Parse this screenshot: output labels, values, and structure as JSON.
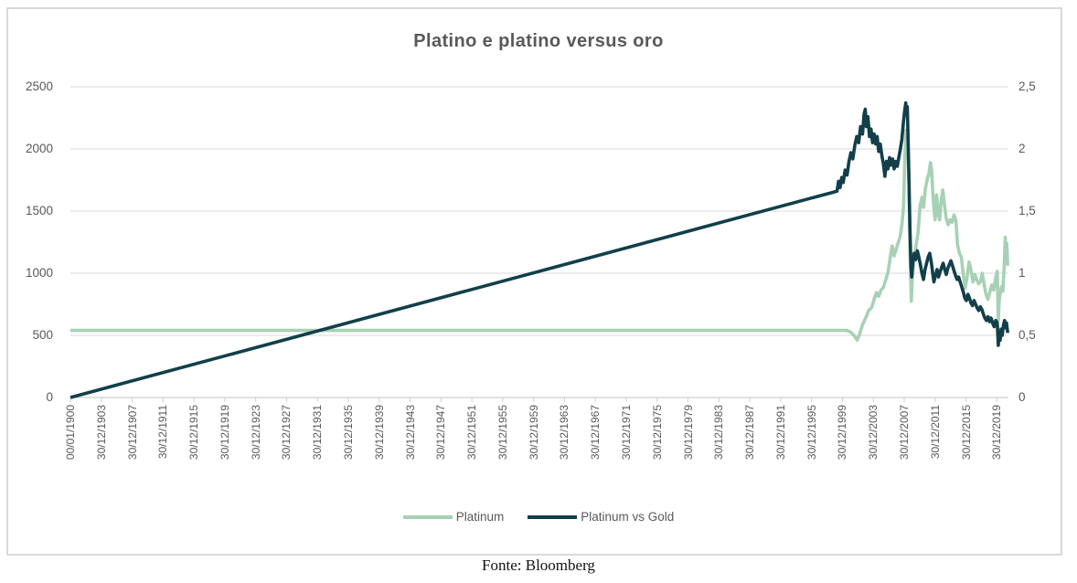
{
  "caption": "Fonte: Bloomberg",
  "colors": {
    "platinum": "#a7d1b4",
    "platinum_vs_gold": "#123f4a",
    "gridline": "#dadada",
    "axis_line": "#cfcfcf",
    "tick_mark": "#cfcfcf",
    "label_text": "#595959",
    "title_text": "#595959",
    "frame_border": "#d9d9d9",
    "background": "#ffffff"
  },
  "chart_data": {
    "type": "line",
    "title": "Platino e platino versus oro",
    "xlabel": "",
    "ylabel_left": "",
    "ylabel_right": "",
    "grid": true,
    "legend_position": "bottom",
    "left_axis": {
      "min": 0,
      "max": 2500,
      "ticks": [
        0,
        500,
        1000,
        1500,
        2000,
        2500
      ],
      "labels": [
        "0",
        "500",
        "1000",
        "1500",
        "2000",
        "2500"
      ]
    },
    "right_axis": {
      "min": 0,
      "max": 2.5,
      "ticks": [
        0,
        0.5,
        1,
        1.5,
        2,
        2.5
      ],
      "labels": [
        "0",
        "0,5",
        "1",
        "1,5",
        "2",
        "2,5"
      ]
    },
    "x_axis": {
      "min": 1900,
      "max": 2021.5,
      "tick_years": [
        1900,
        1904,
        1908,
        1912,
        1916,
        1920,
        1924,
        1928,
        1932,
        1936,
        1940,
        1944,
        1948,
        1952,
        1956,
        1960,
        1964,
        1968,
        1972,
        1976,
        1980,
        1984,
        1988,
        1992,
        1996,
        2000,
        2004,
        2008,
        2012,
        2016,
        2020
      ],
      "tick_labels": [
        "00/01/1900",
        "30/12/1903",
        "30/12/1907",
        "30/12/1911",
        "30/12/1915",
        "30/12/1919",
        "30/12/1923",
        "30/12/1927",
        "30/12/1931",
        "30/12/1935",
        "30/12/1939",
        "30/12/1943",
        "30/12/1947",
        "30/12/1951",
        "30/12/1955",
        "30/12/1959",
        "30/12/1963",
        "30/12/1967",
        "30/12/1971",
        "30/12/1975",
        "30/12/1979",
        "30/12/1983",
        "30/12/1987",
        "30/12/1991",
        "30/12/1995",
        "30/12/1999",
        "30/12/2003",
        "30/12/2007",
        "30/12/2011",
        "30/12/2015",
        "30/12/2019"
      ]
    },
    "series": [
      {
        "name": "Platinum",
        "axis": "left",
        "color": "#a7d1b4",
        "points": [
          [
            1900,
            540
          ],
          [
            2000.6,
            540
          ],
          [
            2001.1,
            525
          ],
          [
            2001.5,
            500
          ],
          [
            2001.9,
            462
          ],
          [
            2002.2,
            505
          ],
          [
            2002.6,
            585
          ],
          [
            2003.0,
            640
          ],
          [
            2003.4,
            700
          ],
          [
            2003.8,
            725
          ],
          [
            2004.1,
            790
          ],
          [
            2004.4,
            845
          ],
          [
            2004.7,
            815
          ],
          [
            2005.0,
            865
          ],
          [
            2005.3,
            885
          ],
          [
            2005.6,
            945
          ],
          [
            2005.9,
            1010
          ],
          [
            2006.2,
            1130
          ],
          [
            2006.45,
            1220
          ],
          [
            2006.7,
            1140
          ],
          [
            2006.95,
            1190
          ],
          [
            2007.2,
            1240
          ],
          [
            2007.45,
            1290
          ],
          [
            2007.7,
            1390
          ],
          [
            2007.9,
            1530
          ],
          [
            2008.1,
            1950
          ],
          [
            2008.25,
            2150
          ],
          [
            2008.35,
            1980
          ],
          [
            2008.45,
            2060
          ],
          [
            2008.6,
            1780
          ],
          [
            2008.75,
            1190
          ],
          [
            2008.92,
            775
          ],
          [
            2009.05,
            960
          ],
          [
            2009.3,
            1120
          ],
          [
            2009.55,
            1230
          ],
          [
            2009.8,
            1330
          ],
          [
            2010.05,
            1540
          ],
          [
            2010.3,
            1610
          ],
          [
            2010.5,
            1530
          ],
          [
            2010.75,
            1680
          ],
          [
            2011.0,
            1760
          ],
          [
            2011.2,
            1800
          ],
          [
            2011.4,
            1890
          ],
          [
            2011.55,
            1830
          ],
          [
            2011.7,
            1660
          ],
          [
            2011.85,
            1520
          ],
          [
            2012.0,
            1430
          ],
          [
            2012.2,
            1630
          ],
          [
            2012.4,
            1470
          ],
          [
            2012.6,
            1430
          ],
          [
            2012.8,
            1590
          ],
          [
            2013.0,
            1670
          ],
          [
            2013.2,
            1560
          ],
          [
            2013.45,
            1440
          ],
          [
            2013.7,
            1390
          ],
          [
            2013.95,
            1430
          ],
          [
            2014.2,
            1410
          ],
          [
            2014.45,
            1470
          ],
          [
            2014.7,
            1420
          ],
          [
            2014.9,
            1230
          ],
          [
            2015.15,
            1160
          ],
          [
            2015.4,
            1130
          ],
          [
            2015.65,
            990
          ],
          [
            2015.9,
            880
          ],
          [
            2016.15,
            970
          ],
          [
            2016.4,
            1090
          ],
          [
            2016.65,
            1030
          ],
          [
            2016.9,
            930
          ],
          [
            2017.15,
            990
          ],
          [
            2017.4,
            945
          ],
          [
            2017.65,
            915
          ],
          [
            2017.9,
            935
          ],
          [
            2018.1,
            1000
          ],
          [
            2018.35,
            910
          ],
          [
            2018.6,
            830
          ],
          [
            2018.85,
            790
          ],
          [
            2019.1,
            850
          ],
          [
            2019.35,
            905
          ],
          [
            2019.6,
            865
          ],
          [
            2019.85,
            965
          ],
          [
            2020.05,
            1015
          ],
          [
            2020.18,
            620
          ],
          [
            2020.3,
            775
          ],
          [
            2020.45,
            845
          ],
          [
            2020.6,
            890
          ],
          [
            2020.78,
            855
          ],
          [
            2020.95,
            1060
          ],
          [
            2021.08,
            1290
          ],
          [
            2021.18,
            1190
          ],
          [
            2021.28,
            1240
          ],
          [
            2021.4,
            1060
          ]
        ]
      },
      {
        "name": "Platinum vs Gold",
        "axis": "right",
        "color": "#123f4a",
        "points": [
          [
            1900,
            0
          ],
          [
            1999.3,
            1.66
          ],
          [
            1999.5,
            1.74
          ],
          [
            1999.7,
            1.69
          ],
          [
            1999.9,
            1.77
          ],
          [
            2000.1,
            1.73
          ],
          [
            2000.35,
            1.83
          ],
          [
            2000.6,
            1.79
          ],
          [
            2000.85,
            1.9
          ],
          [
            2001.1,
            1.97
          ],
          [
            2001.35,
            1.92
          ],
          [
            2001.6,
            2.03
          ],
          [
            2001.85,
            2.1
          ],
          [
            2002.1,
            2.05
          ],
          [
            2002.35,
            2.18
          ],
          [
            2002.6,
            2.12
          ],
          [
            2002.8,
            2.28
          ],
          [
            2002.95,
            2.32
          ],
          [
            2003.1,
            2.18
          ],
          [
            2003.3,
            2.26
          ],
          [
            2003.5,
            2.1
          ],
          [
            2003.7,
            2.16
          ],
          [
            2003.9,
            2.05
          ],
          [
            2004.1,
            2.12
          ],
          [
            2004.3,
            2.04
          ],
          [
            2004.5,
            2.1
          ],
          [
            2004.7,
            1.98
          ],
          [
            2004.9,
            2.04
          ],
          [
            2005.1,
            1.95
          ],
          [
            2005.3,
            1.88
          ],
          [
            2005.5,
            1.78
          ],
          [
            2005.7,
            1.9
          ],
          [
            2005.9,
            1.84
          ],
          [
            2006.1,
            1.93
          ],
          [
            2006.3,
            1.87
          ],
          [
            2006.5,
            1.92
          ],
          [
            2006.7,
            1.84
          ],
          [
            2006.9,
            1.9
          ],
          [
            2007.1,
            1.86
          ],
          [
            2007.3,
            1.93
          ],
          [
            2007.5,
            2.0
          ],
          [
            2007.7,
            2.08
          ],
          [
            2007.9,
            2.22
          ],
          [
            2008.05,
            2.3
          ],
          [
            2008.2,
            2.37
          ],
          [
            2008.3,
            2.28
          ],
          [
            2008.4,
            2.34
          ],
          [
            2008.5,
            2.1
          ],
          [
            2008.62,
            1.75
          ],
          [
            2008.75,
            1.35
          ],
          [
            2008.88,
            1.05
          ],
          [
            2008.97,
            0.97
          ],
          [
            2009.1,
            1.08
          ],
          [
            2009.3,
            1.16
          ],
          [
            2009.5,
            1.11
          ],
          [
            2009.7,
            1.18
          ],
          [
            2009.9,
            1.13
          ],
          [
            2010.1,
            1.07
          ],
          [
            2010.3,
            1.0
          ],
          [
            2010.5,
            0.95
          ],
          [
            2010.7,
            1.03
          ],
          [
            2010.9,
            1.08
          ],
          [
            2011.1,
            1.13
          ],
          [
            2011.3,
            1.16
          ],
          [
            2011.5,
            1.09
          ],
          [
            2011.7,
            1.0
          ],
          [
            2011.85,
            0.93
          ],
          [
            2012.05,
            0.98
          ],
          [
            2012.25,
            1.03
          ],
          [
            2012.45,
            0.97
          ],
          [
            2012.65,
            1.01
          ],
          [
            2012.85,
            1.05
          ],
          [
            2013.05,
            1.08
          ],
          [
            2013.25,
            1.03
          ],
          [
            2013.45,
            0.99
          ],
          [
            2013.65,
            1.04
          ],
          [
            2013.85,
            1.07
          ],
          [
            2014.05,
            1.1
          ],
          [
            2014.25,
            1.06
          ],
          [
            2014.45,
            1.02
          ],
          [
            2014.65,
            0.98
          ],
          [
            2014.85,
            0.95
          ],
          [
            2015.05,
            0.97
          ],
          [
            2015.25,
            0.93
          ],
          [
            2015.45,
            0.89
          ],
          [
            2015.65,
            0.85
          ],
          [
            2015.85,
            0.8
          ],
          [
            2016.05,
            0.78
          ],
          [
            2016.25,
            0.83
          ],
          [
            2016.45,
            0.8
          ],
          [
            2016.65,
            0.76
          ],
          [
            2016.85,
            0.74
          ],
          [
            2017.05,
            0.78
          ],
          [
            2017.25,
            0.75
          ],
          [
            2017.45,
            0.72
          ],
          [
            2017.65,
            0.7
          ],
          [
            2017.85,
            0.73
          ],
          [
            2018.05,
            0.71
          ],
          [
            2018.25,
            0.67
          ],
          [
            2018.45,
            0.64
          ],
          [
            2018.65,
            0.62
          ],
          [
            2018.85,
            0.65
          ],
          [
            2019.05,
            0.61
          ],
          [
            2019.25,
            0.64
          ],
          [
            2019.45,
            0.6
          ],
          [
            2019.65,
            0.57
          ],
          [
            2019.85,
            0.62
          ],
          [
            2020.05,
            0.6
          ],
          [
            2020.18,
            0.42
          ],
          [
            2020.3,
            0.52
          ],
          [
            2020.42,
            0.46
          ],
          [
            2020.55,
            0.55
          ],
          [
            2020.7,
            0.5
          ],
          [
            2020.85,
            0.58
          ],
          [
            2021.0,
            0.62
          ],
          [
            2021.12,
            0.56
          ],
          [
            2021.25,
            0.6
          ],
          [
            2021.4,
            0.52
          ]
        ]
      }
    ]
  }
}
